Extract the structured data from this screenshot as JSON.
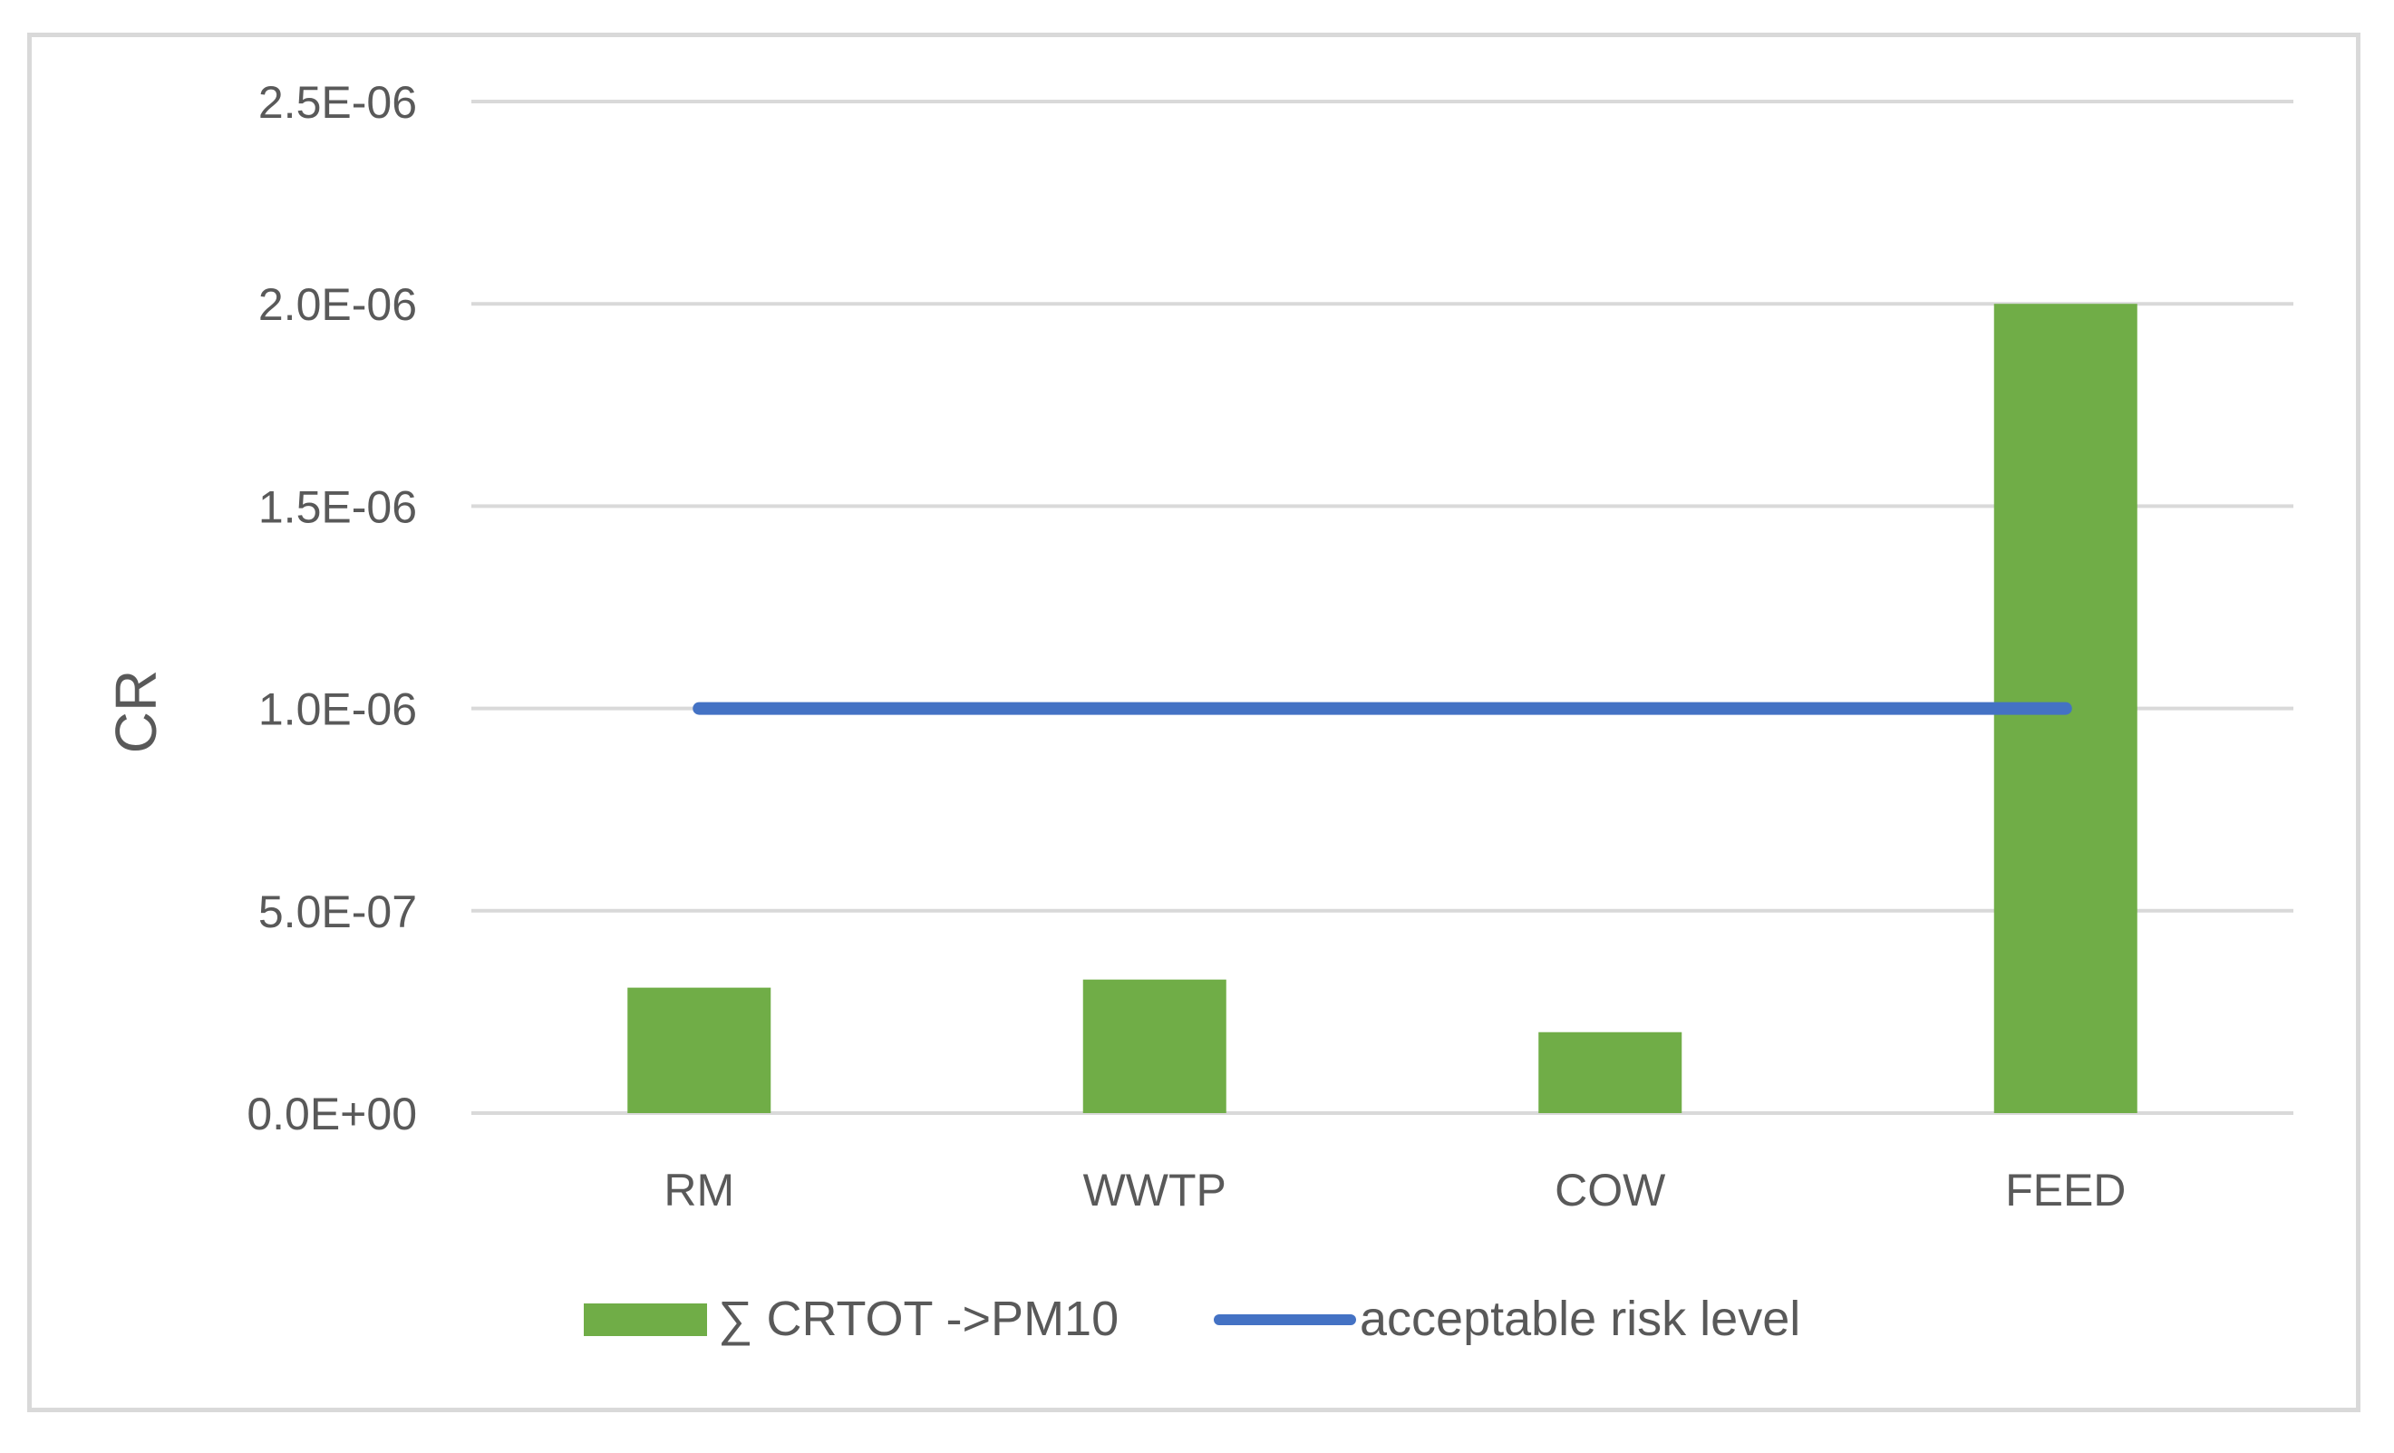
{
  "chart_data": {
    "type": "bar",
    "categories": [
      "RM",
      "WWTP",
      "COW",
      "FEED"
    ],
    "series": [
      {
        "name": "∑ CRTOT ->PM10",
        "type": "bar",
        "color": "#70ad47",
        "values": [
          3.1e-07,
          3.3e-07,
          2e-07,
          2e-06
        ]
      },
      {
        "name": "acceptable risk level",
        "type": "line",
        "color": "#4472c4",
        "values": [
          1e-06,
          1e-06,
          1e-06,
          1e-06
        ]
      }
    ],
    "ylabel": "CR",
    "xlabel": "",
    "ylim": [
      0,
      2.5e-06
    ],
    "yticks": [
      0,
      5e-07,
      1e-06,
      1.5e-06,
      2e-06,
      2.5e-06
    ],
    "ytick_labels": [
      "0.0E+00",
      "5.0E-07",
      "1.0E-06",
      "1.5E-06",
      "2.0E-06",
      "2.5E-06"
    ],
    "grid": true,
    "legend_position": "bottom"
  }
}
